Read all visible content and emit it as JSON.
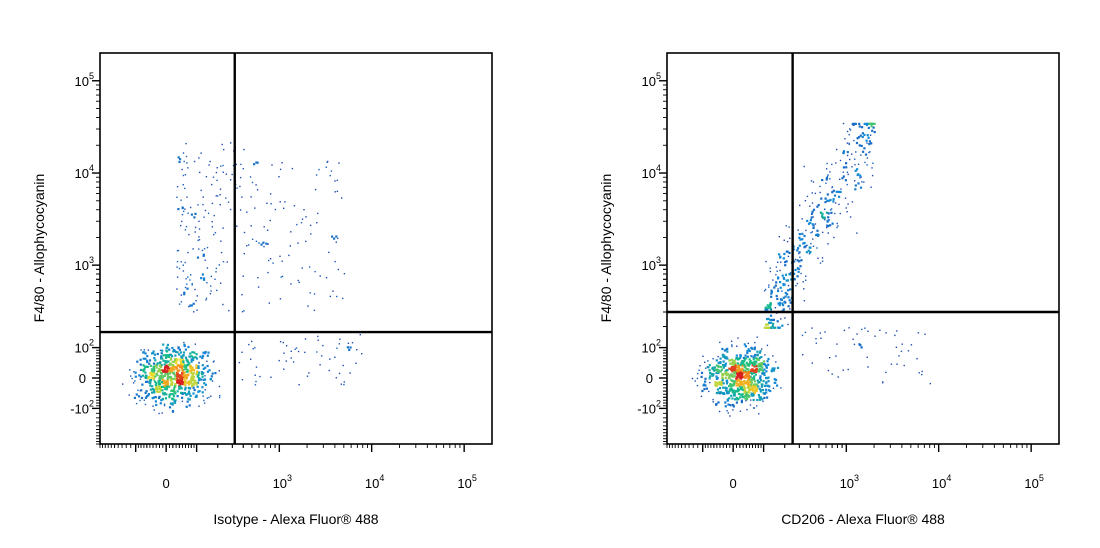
{
  "chart_data": [
    {
      "type": "scatter",
      "subtype": "flow-cytometry-density-dot-plot",
      "xlabel": "Isotype - Alexa Fluor® 488",
      "ylabel": "F4/80 - Allophycocyanin",
      "xscale": "biexponential",
      "yscale": "biexponential",
      "xlim": [
        -300,
        200000
      ],
      "ylim": [
        -300,
        200000
      ],
      "x_ticks": [
        {
          "base": "0",
          "exp": ""
        },
        {
          "base": "10",
          "exp": "3"
        },
        {
          "base": "10",
          "exp": "4"
        },
        {
          "base": "10",
          "exp": "5"
        }
      ],
      "y_ticks": [
        {
          "base": "10",
          "exp": "5"
        },
        {
          "base": "10",
          "exp": "4"
        },
        {
          "base": "10",
          "exp": "3"
        },
        {
          "base": "10",
          "exp": "2"
        },
        {
          "base": "0",
          "exp": ""
        },
        {
          "base": "-10",
          "exp": "2"
        }
      ],
      "gate": {
        "x": 320,
        "y": 170
      },
      "grid": false,
      "populations": [
        {
          "name": "",
          "n": 650,
          "x": {
            "center": 20,
            "spread": 60
          },
          "y": {
            "center": 10,
            "spread": 45
          }
        },
        {
          "name": "",
          "n": 170,
          "x": {
            "range": [
              30,
              400
            ]
          },
          "y": {
            "range": [
              300,
              22000
            ]
          }
        },
        {
          "name": "",
          "n": 110,
          "x": {
            "range": [
              320,
              5000
            ]
          },
          "y": {
            "range": [
              300,
              14000
            ]
          }
        },
        {
          "name": "",
          "n": 60,
          "x": {
            "range": [
              350,
              8000
            ]
          },
          "y": {
            "range": [
              -30,
              160
            ]
          }
        }
      ]
    },
    {
      "type": "scatter",
      "subtype": "flow-cytometry-density-dot-plot",
      "xlabel": "CD206 - Alexa Fluor® 488",
      "ylabel": "F4/80 - Allophycocyanin",
      "xscale": "biexponential",
      "yscale": "biexponential",
      "xlim": [
        -300,
        200000
      ],
      "ylim": [
        -300,
        200000
      ],
      "x_ticks": [
        {
          "base": "0",
          "exp": ""
        },
        {
          "base": "10",
          "exp": "3"
        },
        {
          "base": "10",
          "exp": "4"
        },
        {
          "base": "10",
          "exp": "5"
        }
      ],
      "y_ticks": [
        {
          "base": "10",
          "exp": "5"
        },
        {
          "base": "10",
          "exp": "4"
        },
        {
          "base": "10",
          "exp": "3"
        },
        {
          "base": "10",
          "exp": "2"
        },
        {
          "base": "0",
          "exp": ""
        },
        {
          "base": "-10",
          "exp": "2"
        }
      ],
      "gate": {
        "x": 250,
        "y": 300
      },
      "grid": false,
      "populations": [
        {
          "name": "",
          "n": 650,
          "x": {
            "center": 15,
            "spread": 55
          },
          "y": {
            "center": 5,
            "spread": 45
          }
        },
        {
          "name": "",
          "n": 420,
          "x": {
            "range": [
              100,
              2000
            ]
          },
          "y": {
            "range": [
              200,
              35000
            ]
          }
        },
        {
          "name": "",
          "n": 55,
          "x": {
            "range": [
              300,
              8000
            ]
          },
          "y": {
            "range": [
              -20,
              200
            ]
          }
        }
      ]
    }
  ]
}
